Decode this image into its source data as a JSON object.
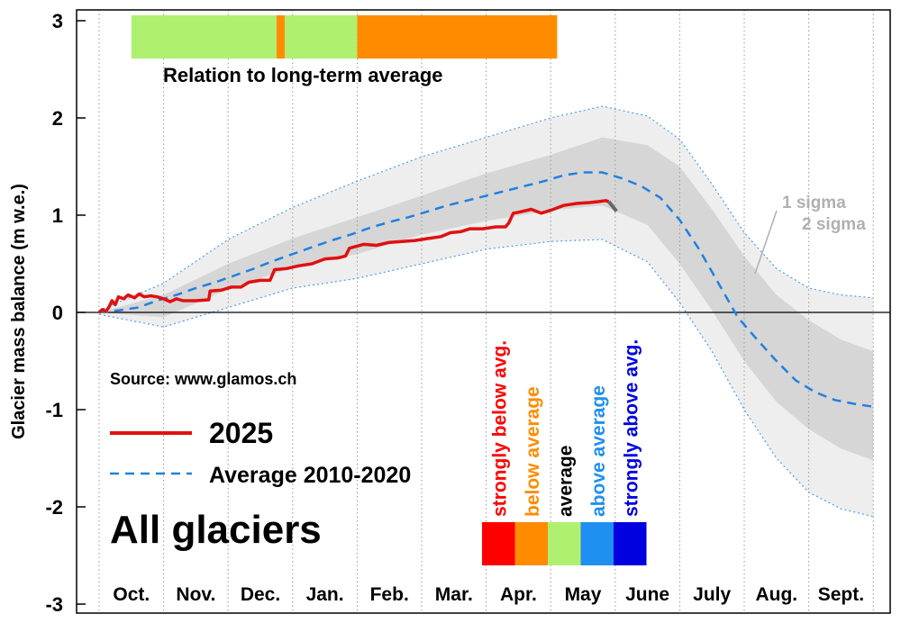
{
  "chart_data": {
    "type": "line",
    "ylabel": "Glacier mass balance (m w.e.)",
    "ylim": [
      -3,
      3
    ],
    "yticks": [
      -3,
      -2,
      -1,
      0,
      1,
      2,
      3
    ],
    "ytick_labels": [
      "-3",
      "-2",
      "-1",
      "0",
      "1",
      "2",
      "3"
    ],
    "x_unit": "months since 1 October",
    "xlim": [
      0,
      12.3
    ],
    "months": [
      "Oct.",
      "Nov.",
      "Dec.",
      "Jan.",
      "Feb.",
      "Mar.",
      "Apr.",
      "May",
      "June",
      "July",
      "Aug.",
      "Sept."
    ],
    "grid": "dotted vertical lines at month boundaries",
    "title": "All glaciers",
    "source": "Source: www.glamos.ch",
    "series": [
      {
        "name": "2025",
        "style": "solid",
        "color": "#e01010",
        "points": [
          [
            0,
            0.0
          ],
          [
            0.05,
            0.03
          ],
          [
            0.1,
            0.01
          ],
          [
            0.15,
            0.05
          ],
          [
            0.2,
            0.12
          ],
          [
            0.25,
            0.08
          ],
          [
            0.3,
            0.16
          ],
          [
            0.38,
            0.14
          ],
          [
            0.45,
            0.18
          ],
          [
            0.55,
            0.15
          ],
          [
            0.62,
            0.19
          ],
          [
            0.7,
            0.16
          ],
          [
            0.8,
            0.17
          ],
          [
            0.9,
            0.16
          ],
          [
            1.0,
            0.14
          ],
          [
            1.1,
            0.11
          ],
          [
            1.2,
            0.14
          ],
          [
            1.3,
            0.12
          ],
          [
            1.5,
            0.12
          ],
          [
            1.7,
            0.13
          ],
          [
            1.72,
            0.22
          ],
          [
            1.9,
            0.23
          ],
          [
            2.05,
            0.26
          ],
          [
            2.2,
            0.26
          ],
          [
            2.32,
            0.31
          ],
          [
            2.5,
            0.33
          ],
          [
            2.65,
            0.33
          ],
          [
            2.72,
            0.44
          ],
          [
            2.9,
            0.45
          ],
          [
            3.1,
            0.48
          ],
          [
            3.3,
            0.5
          ],
          [
            3.5,
            0.55
          ],
          [
            3.7,
            0.56
          ],
          [
            3.82,
            0.58
          ],
          [
            3.88,
            0.66
          ],
          [
            4.1,
            0.7
          ],
          [
            4.3,
            0.69
          ],
          [
            4.5,
            0.72
          ],
          [
            4.7,
            0.73
          ],
          [
            4.9,
            0.74
          ],
          [
            5.1,
            0.76
          ],
          [
            5.3,
            0.78
          ],
          [
            5.45,
            0.82
          ],
          [
            5.6,
            0.83
          ],
          [
            5.75,
            0.86
          ],
          [
            5.95,
            0.86
          ],
          [
            6.15,
            0.88
          ],
          [
            6.3,
            0.88
          ],
          [
            6.35,
            0.92
          ],
          [
            6.42,
            1.02
          ],
          [
            6.5,
            1.03
          ],
          [
            6.7,
            1.06
          ],
          [
            6.85,
            1.02
          ],
          [
            7.0,
            1.05
          ],
          [
            7.2,
            1.1
          ],
          [
            7.4,
            1.12
          ],
          [
            7.6,
            1.13
          ],
          [
            7.75,
            1.14
          ],
          [
            7.85,
            1.15
          ],
          [
            7.9,
            1.14
          ]
        ]
      },
      {
        "name": "Average 2010-2020",
        "style": "dashed",
        "color": "#2080e0",
        "points": [
          [
            0,
            0.0
          ],
          [
            0.3,
            0.02
          ],
          [
            0.6,
            0.05
          ],
          [
            0.9,
            0.12
          ],
          [
            1.2,
            0.18
          ],
          [
            1.5,
            0.25
          ],
          [
            1.8,
            0.31
          ],
          [
            2.1,
            0.38
          ],
          [
            2.4,
            0.45
          ],
          [
            2.7,
            0.53
          ],
          [
            3.0,
            0.6
          ],
          [
            3.3,
            0.67
          ],
          [
            3.6,
            0.74
          ],
          [
            3.9,
            0.8
          ],
          [
            4.2,
            0.87
          ],
          [
            4.5,
            0.93
          ],
          [
            4.8,
            0.98
          ],
          [
            5.1,
            1.04
          ],
          [
            5.4,
            1.1
          ],
          [
            5.7,
            1.15
          ],
          [
            6.0,
            1.2
          ],
          [
            6.3,
            1.25
          ],
          [
            6.6,
            1.3
          ],
          [
            6.9,
            1.35
          ],
          [
            7.2,
            1.41
          ],
          [
            7.5,
            1.44
          ],
          [
            7.8,
            1.44
          ],
          [
            8.1,
            1.38
          ],
          [
            8.4,
            1.3
          ],
          [
            8.7,
            1.18
          ],
          [
            9.0,
            0.95
          ],
          [
            9.3,
            0.65
          ],
          [
            9.6,
            0.3
          ],
          [
            9.9,
            -0.05
          ],
          [
            10.2,
            -0.28
          ],
          [
            10.5,
            -0.5
          ],
          [
            10.8,
            -0.7
          ],
          [
            11.1,
            -0.82
          ],
          [
            11.4,
            -0.9
          ],
          [
            11.7,
            -0.94
          ],
          [
            12.0,
            -0.97
          ]
        ]
      }
    ],
    "sigma_bands": {
      "x": [
        0,
        1,
        2,
        3,
        4,
        5,
        6,
        7,
        7.8,
        8.5,
        9,
        9.5,
        10,
        10.5,
        11,
        11.5,
        12
      ],
      "sigma1_upper": [
        0.0,
        0.18,
        0.5,
        0.76,
        0.98,
        1.2,
        1.43,
        1.62,
        1.8,
        1.72,
        1.5,
        1.06,
        0.58,
        0.18,
        -0.08,
        -0.28,
        -0.4
      ],
      "sigma1_lower": [
        0.0,
        -0.05,
        0.24,
        0.46,
        0.6,
        0.8,
        0.94,
        1.05,
        1.1,
        0.9,
        0.5,
        0.02,
        -0.5,
        -0.92,
        -1.2,
        -1.4,
        -1.52
      ],
      "sigma2_upper": [
        0.02,
        0.3,
        0.75,
        1.08,
        1.35,
        1.6,
        1.8,
        2.0,
        2.12,
        2.02,
        1.78,
        1.32,
        0.82,
        0.45,
        0.25,
        0.18,
        0.15
      ],
      "sigma2_lower": [
        -0.02,
        -0.15,
        0.05,
        0.25,
        0.35,
        0.5,
        0.65,
        0.73,
        0.75,
        0.52,
        0.1,
        -0.4,
        -1.0,
        -1.5,
        -1.85,
        -2.02,
        -2.1
      ]
    },
    "annotations": [
      "1 sigma",
      "2 sigma"
    ],
    "relation_bar": {
      "label": "Relation to long-term average",
      "segments": [
        {
          "from": 0.5,
          "to": 2.75,
          "category": "average"
        },
        {
          "from": 2.75,
          "to": 2.88,
          "category": "below average"
        },
        {
          "from": 2.88,
          "to": 4.0,
          "category": "average"
        },
        {
          "from": 4.0,
          "to": 7.1,
          "category": "below average"
        }
      ]
    },
    "legend": [
      {
        "label": "2025",
        "series": "2025"
      },
      {
        "label": "Average 2010-2020",
        "series": "Average 2010-2020"
      }
    ],
    "category_legend": [
      {
        "label": "strongly below avg.",
        "color": "#ff0000"
      },
      {
        "label": "below average",
        "color": "#ff8c00"
      },
      {
        "label": "average",
        "color": "#b0f070"
      },
      {
        "label": "above average",
        "color": "#2090f0"
      },
      {
        "label": "strongly above avg.",
        "color": "#0000e0"
      }
    ]
  },
  "colors": {
    "current": "#e01010",
    "average": "#2080e0",
    "sigma1": "#d6d6d6",
    "sigma2": "#eeeeee",
    "sigma_outline": "#4aa0f0",
    "forecast_stub": "#666666",
    "annot": "#b0b0b0"
  }
}
